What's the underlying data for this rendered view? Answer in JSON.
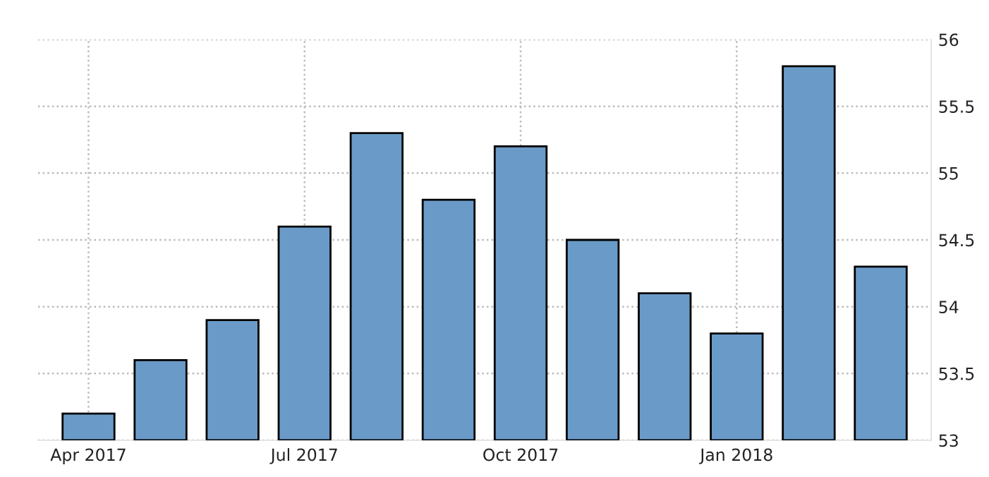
{
  "chart_data": {
    "type": "bar",
    "categories": [
      "Apr 2017",
      null,
      null,
      "Jul 2017",
      null,
      null,
      "Oct 2017",
      null,
      null,
      "Jan 2018",
      null,
      null
    ],
    "values": [
      53.2,
      53.6,
      53.9,
      54.6,
      55.3,
      54.8,
      55.2,
      54.5,
      54.1,
      53.8,
      55.8,
      54.3
    ],
    "color": "#6a9bc8",
    "ylim": [
      53,
      56
    ],
    "yticks": [
      53,
      53.5,
      54,
      54.5,
      55,
      55.5,
      56
    ],
    "grid": true
  }
}
